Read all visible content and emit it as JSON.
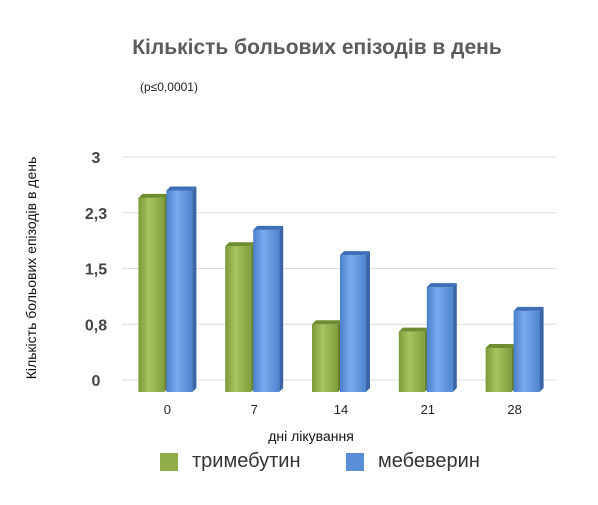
{
  "chart_data": {
    "type": "bar",
    "title": "Кількість больових епізодів в день",
    "subtitle": "(p≤0,0001)",
    "xlabel": "дні лікування",
    "ylabel": "Кількість больових епізодів в день",
    "categories": [
      "0",
      "7",
      "14",
      "21",
      "28"
    ],
    "y_ticks": [
      "0",
      "0,8",
      "1,5",
      "2,3",
      "3"
    ],
    "ylim": [
      0,
      3
    ],
    "grid": true,
    "legend_position": "bottom",
    "series": [
      {
        "name": "тримебутин",
        "values": [
          2.45,
          1.8,
          0.75,
          0.65,
          0.43
        ],
        "color": "#8fae4a"
      },
      {
        "name": "мебеверин",
        "values": [
          2.55,
          2.02,
          1.68,
          1.25,
          0.93
        ],
        "color": "#5a8ed8"
      }
    ]
  }
}
